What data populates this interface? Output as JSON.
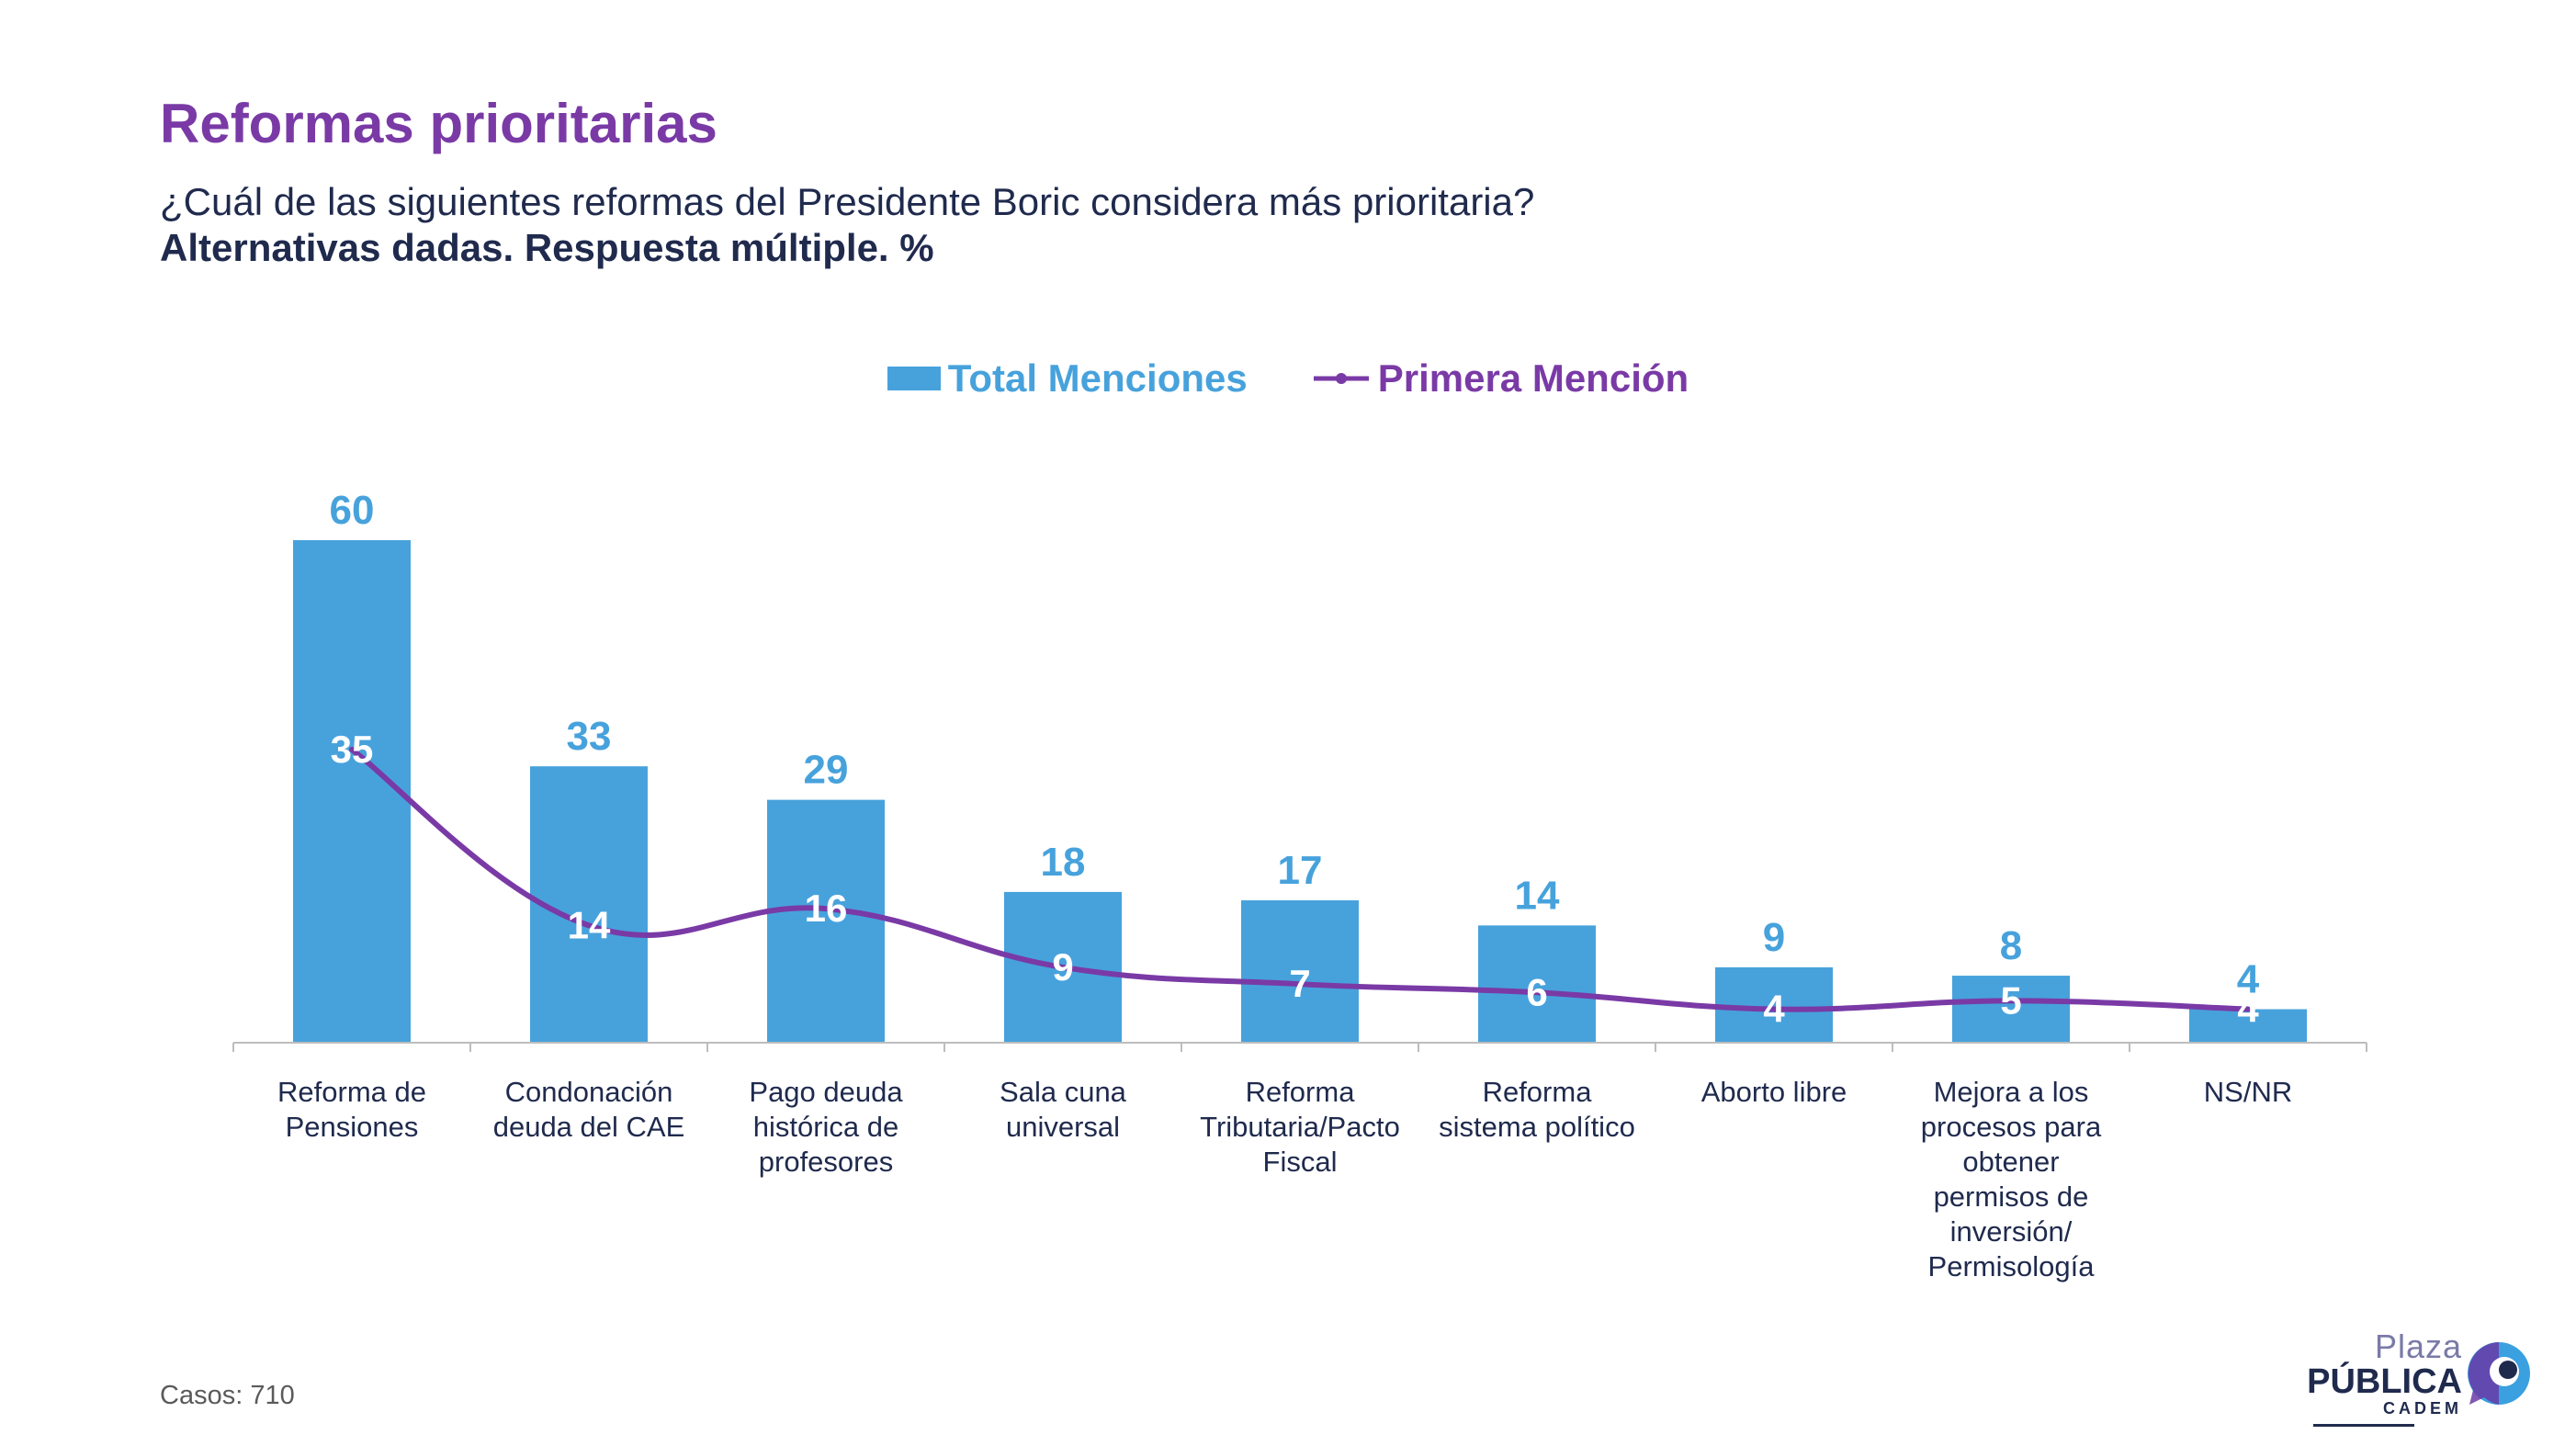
{
  "title": "Reformas prioritarias",
  "subtitle": "¿Cuál de las siguientes reformas del Presidente Boric considera más prioritaria?",
  "note": "Alternativas dadas. Respuesta múltiple. %",
  "footer": {
    "cases": "Casos: 710"
  },
  "brand": {
    "line1": "Plaza",
    "line2": "PÚBLICA",
    "line3": "CADEM"
  },
  "colors": {
    "bar": "#47a2dc",
    "line": "#7a3aa6",
    "text": "#1f2a4d"
  },
  "chart_data": {
    "type": "bar",
    "categories": [
      "Reforma de\nPensiones",
      "Condonación\ndeuda del CAE",
      "Pago deuda\nhistórica de\nprofesores",
      "Sala cuna\nuniversal",
      "Reforma\nTributaria/Pacto\nFiscal",
      "Reforma\nsistema político",
      "Aborto libre",
      "Mejora a los\nprocesos para\nobtener\npermisos de\ninversión/\nPermisología",
      "NS/NR"
    ],
    "series": [
      {
        "name": "Total Menciones",
        "kind": "bar",
        "values": [
          60,
          33,
          29,
          18,
          17,
          14,
          9,
          8,
          4
        ]
      },
      {
        "name": "Primera Mención",
        "kind": "line",
        "values": [
          35,
          14,
          16,
          9,
          7,
          6,
          4,
          5,
          4
        ]
      }
    ],
    "ylim": [
      0,
      60
    ],
    "grid": false,
    "legend": "top-center",
    "data_labels": true
  }
}
